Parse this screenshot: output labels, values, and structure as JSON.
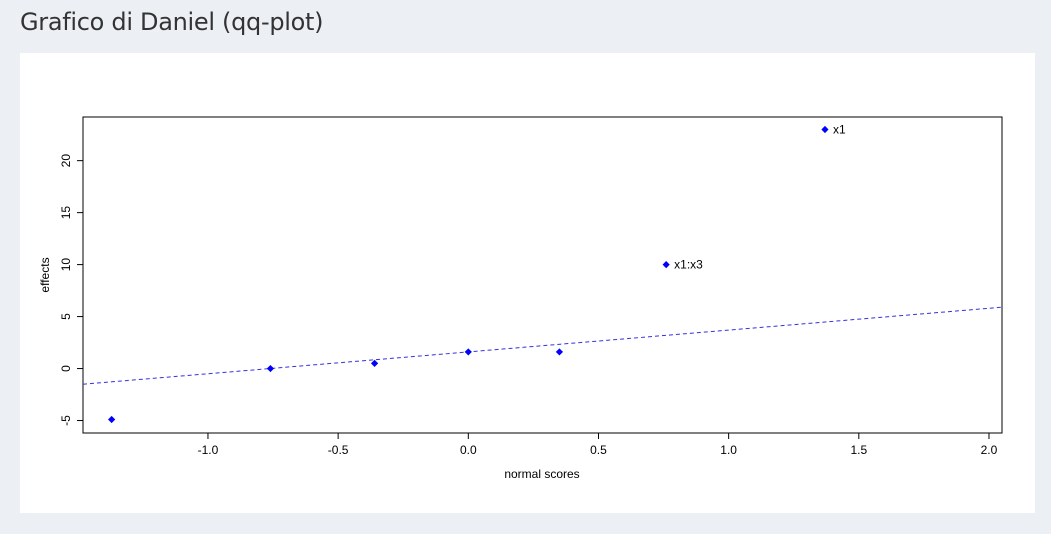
{
  "page": {
    "title": "Grafico di Daniel (qq-plot)"
  },
  "chart_data": {
    "type": "scatter",
    "title": "",
    "xlabel": "normal scores",
    "ylabel": "effects",
    "xlim": [
      -1.48,
      2.05
    ],
    "ylim": [
      -6.2,
      24.2
    ],
    "x_ticks": [
      -1.0,
      -0.5,
      0.0,
      0.5,
      1.0,
      1.5,
      2.0
    ],
    "x_tick_labels": [
      "-1.0",
      "-0.5",
      "0.0",
      "0.5",
      "1.0",
      "1.5",
      "2.0"
    ],
    "y_ticks": [
      -5,
      0,
      5,
      10,
      15,
      20
    ],
    "y_tick_labels": [
      "-5",
      "0",
      "5",
      "10",
      "15",
      "20"
    ],
    "grid": false,
    "point_color": "#0000ff",
    "line_color": "#3333dd",
    "points": [
      {
        "x": -1.37,
        "y": -4.9,
        "label": ""
      },
      {
        "x": -0.76,
        "y": 0.0,
        "label": ""
      },
      {
        "x": -0.36,
        "y": 0.5,
        "label": ""
      },
      {
        "x": 0.0,
        "y": 1.6,
        "label": ""
      },
      {
        "x": 0.35,
        "y": 1.6,
        "label": ""
      },
      {
        "x": 0.76,
        "y": 10.0,
        "label": "x1:x3"
      },
      {
        "x": 1.37,
        "y": 23.0,
        "label": "x1"
      }
    ],
    "reference_line": {
      "intercept": 1.6,
      "slope": 2.1,
      "style": "dashed"
    }
  }
}
